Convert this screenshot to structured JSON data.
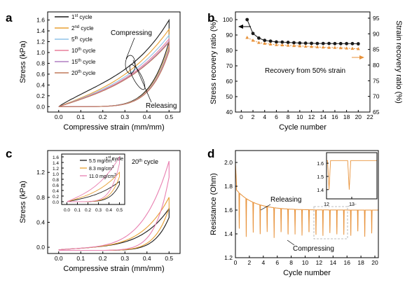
{
  "chart_data": [
    {
      "panel": "a",
      "type": "line",
      "xlabel": "Compressive strain (mm/mm)",
      "ylabel": "Stress (kPa)",
      "xlim": [
        -0.05,
        0.55
      ],
      "ylim": [
        -0.1,
        1.75
      ],
      "xticks": [
        0.0,
        0.1,
        0.2,
        0.3,
        0.4,
        0.5
      ],
      "yticks": [
        0.0,
        0.2,
        0.4,
        0.6,
        0.8,
        1.0,
        1.2,
        1.4,
        1.6
      ],
      "legend_position": "top-left",
      "series": [
        {
          "name": "1st cycle",
          "cycle": 1,
          "label_base": "1",
          "label_sup": "st",
          "label_rest": " cycle",
          "color": "#1a1a1a",
          "load_max": 1.6,
          "unload_max": 1.2
        },
        {
          "name": "2nd cycle",
          "cycle": 2,
          "label_base": "2",
          "label_sup": "nd",
          "label_rest": " cycle",
          "color": "#e8a033",
          "load_max": 1.43,
          "unload_max": 1.12
        },
        {
          "name": "5th cycle",
          "cycle": 5,
          "label_base": "5",
          "label_sup": "th",
          "label_rest": " cycle",
          "color": "#8fc3e8",
          "load_max": 1.32,
          "unload_max": 1.08
        },
        {
          "name": "10th cycle",
          "cycle": 10,
          "label_base": "10",
          "label_sup": "th",
          "label_rest": " cycle",
          "color": "#e87f9a",
          "load_max": 1.25,
          "unload_max": 1.05
        },
        {
          "name": "15th cycle",
          "cycle": 15,
          "label_base": "15",
          "label_sup": "th",
          "label_rest": " cycle",
          "color": "#b07ec2",
          "load_max": 1.21,
          "unload_max": 1.03
        },
        {
          "name": "20th cycle",
          "cycle": 20,
          "label_base": "20",
          "label_sup": "th",
          "label_rest": " cycle",
          "color": "#c07a5a",
          "load_max": 1.19,
          "unload_max": 1.02
        }
      ],
      "annotations": [
        "Compressing",
        "Releasing"
      ]
    },
    {
      "panel": "b",
      "type": "line",
      "xlabel": "Cycle number",
      "ylabel": "Stress recovery ratio (%)",
      "ylabel_right": "Strain recovery ratio (%)",
      "xlim": [
        -1,
        22
      ],
      "ylim": [
        40,
        105
      ],
      "ylim_right": [
        65,
        97
      ],
      "xticks": [
        0,
        2,
        4,
        6,
        8,
        10,
        12,
        14,
        16,
        18,
        20,
        22
      ],
      "yticks": [
        40,
        50,
        60,
        70,
        80,
        90,
        100
      ],
      "yticks_right": [
        65,
        70,
        75,
        80,
        85,
        90,
        95
      ],
      "x": [
        1,
        2,
        3,
        4,
        5,
        6,
        7,
        8,
        9,
        10,
        11,
        12,
        13,
        14,
        15,
        16,
        17,
        18,
        19,
        20
      ],
      "series": [
        {
          "name": "Stress recovery ratio",
          "axis": "left",
          "color": "#1a1a1a",
          "marker": "circle",
          "values": [
            100,
            91,
            88,
            86.5,
            86,
            85.5,
            85.4,
            85.2,
            85,
            84.8,
            84.7,
            84.6,
            84.5,
            84.5,
            84.5,
            84.4,
            84.4,
            84.4,
            84.4,
            84.3
          ]
        },
        {
          "name": "Strain recovery ratio",
          "axis": "right",
          "color": "#e8923a",
          "marker": "triangle",
          "values": [
            88.8,
            87.9,
            87.2,
            86.9,
            86.7,
            86.5,
            86.4,
            86.3,
            86.2,
            86.1,
            86.0,
            85.9,
            85.8,
            85.7,
            85.6,
            85.6,
            85.5,
            85.4,
            85.3,
            85.2
          ]
        }
      ],
      "annotations": [
        "Recovery from 50% strain"
      ]
    },
    {
      "panel": "c",
      "type": "line",
      "xlabel": "Compressive strain (mm/mm)",
      "ylabel": "Stress (kPa)",
      "xlim": [
        -0.05,
        0.55
      ],
      "ylim": [
        -0.1,
        1.55
      ],
      "xticks": [
        0.0,
        0.1,
        0.2,
        0.3,
        0.4,
        0.5
      ],
      "yticks": [
        0.0,
        0.4,
        0.8,
        1.2
      ],
      "annotation_main": "20th cycle",
      "series": [
        {
          "name": "5.5 mg/cm3",
          "color": "#1a1a1a",
          "load_max": 0.62
        },
        {
          "name": "8.3 mg/cm3",
          "color": "#e8a033",
          "load_max": 0.8
        },
        {
          "name": "11.0 mg/cm3",
          "color": "#e87fb0",
          "load_max": 1.38
        }
      ],
      "inset": {
        "xlim": [
          -0.05,
          0.55
        ],
        "ylim": [
          -0.1,
          1.7
        ],
        "xticks": [
          0.0,
          0.1,
          0.2,
          0.3,
          0.4,
          0.5
        ],
        "yticks": [
          0.0,
          0.2,
          0.4,
          0.6,
          0.8,
          1.0,
          1.2,
          1.4,
          1.6
        ],
        "annotation": "1st cycle",
        "series_max": [
          0.72,
          1.05,
          1.6
        ]
      }
    },
    {
      "panel": "d",
      "type": "line",
      "xlabel": "Cycle number",
      "ylabel": "Resistance (Ohm)",
      "xlim": [
        0,
        20.5
      ],
      "ylim": [
        1.2,
        2.1
      ],
      "xticks": [
        0,
        2,
        4,
        6,
        8,
        10,
        12,
        14,
        16,
        18,
        20
      ],
      "yticks": [
        1.2,
        1.4,
        1.6,
        1.8,
        2.0
      ],
      "color": "#e8923a",
      "baseline": {
        "start": 1.78,
        "settle": 1.6
      },
      "trough_min": 1.38,
      "annotations": [
        "Releasing",
        "Compressing"
      ],
      "inset": {
        "xlim": [
          12,
          14
        ],
        "ylim": [
          1.33,
          1.68
        ],
        "xticks": [
          12,
          13
        ],
        "yticks": [
          1.4,
          1.5,
          1.6
        ],
        "baseline": 1.62,
        "troughs": [
          12.1,
          12.9
        ],
        "trough_min": 1.4
      }
    }
  ],
  "panel_labels": [
    "a",
    "b",
    "c",
    "d"
  ]
}
